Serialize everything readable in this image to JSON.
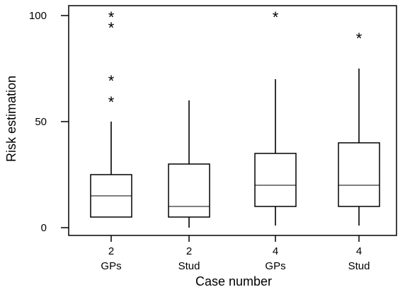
{
  "chart_data": {
    "type": "boxplot",
    "xlabel": "Case number",
    "ylabel": "Risk estimation",
    "ylim": [
      0,
      100
    ],
    "yticks": [
      0,
      50,
      100
    ],
    "grid": false,
    "legend": "none",
    "categories": [
      {
        "case": "2",
        "group": "GPs"
      },
      {
        "case": "2",
        "group": "Stud"
      },
      {
        "case": "4",
        "group": "GPs"
      },
      {
        "case": "4",
        "group": "Stud"
      }
    ],
    "boxes": [
      {
        "min": 5,
        "q1": 5,
        "median": 15,
        "q3": 25,
        "max": 50,
        "outliers": [
          60,
          70,
          95,
          100
        ]
      },
      {
        "min": 0,
        "q1": 5,
        "median": 10,
        "q3": 30,
        "max": 60,
        "outliers": []
      },
      {
        "min": 1,
        "q1": 10,
        "median": 20,
        "q3": 35,
        "max": 70,
        "outliers": [
          100
        ]
      },
      {
        "min": 1,
        "q1": 10,
        "median": 20,
        "q3": 40,
        "max": 75,
        "outliers": [
          90
        ]
      }
    ],
    "outlier_symbol": "*"
  }
}
